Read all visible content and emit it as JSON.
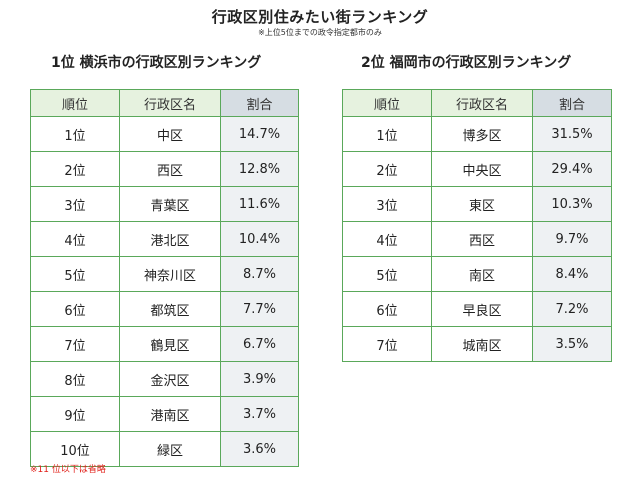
{
  "title": "行政区別住みたい街ランキング",
  "subtitle": "※上位5位までの政令指定都市のみ",
  "left": {
    "heading": "1位 横浜市の行政区別ランキング",
    "headers": [
      "順位",
      "行政区名",
      "割合"
    ],
    "rows": [
      [
        "1位",
        "中区",
        "14.7%"
      ],
      [
        "2位",
        "西区",
        "12.8%"
      ],
      [
        "3位",
        "青葉区",
        "11.6%"
      ],
      [
        "4位",
        "港北区",
        "10.4%"
      ],
      [
        "5位",
        "神奈川区",
        "8.7%"
      ],
      [
        "6位",
        "都筑区",
        "7.7%"
      ],
      [
        "7位",
        "鶴見区",
        "6.7%"
      ],
      [
        "8位",
        "金沢区",
        "3.9%"
      ],
      [
        "9位",
        "港南区",
        "3.7%"
      ],
      [
        "10位",
        "緑区",
        "3.6%"
      ]
    ]
  },
  "right": {
    "heading": "2位 福岡市の行政区別ランキング",
    "headers": [
      "順位",
      "行政区名",
      "割合"
    ],
    "rows": [
      [
        "1位",
        "博多区",
        "31.5%"
      ],
      [
        "2位",
        "中央区",
        "29.4%"
      ],
      [
        "3位",
        "東区",
        "10.3%"
      ],
      [
        "4位",
        "西区",
        "9.7%"
      ],
      [
        "5位",
        "南区",
        "8.4%"
      ],
      [
        "6位",
        "早良区",
        "7.2%"
      ],
      [
        "7位",
        "城南区",
        "3.5%"
      ]
    ]
  },
  "footnote": "※11 位以下は省略",
  "colors": {
    "border": "#5aa85a",
    "header_bg": "#e6f2df",
    "pct_header_bg": "#d6dde3",
    "pct_cell_bg": "#eef1f3",
    "footnote": "#e0201a"
  }
}
